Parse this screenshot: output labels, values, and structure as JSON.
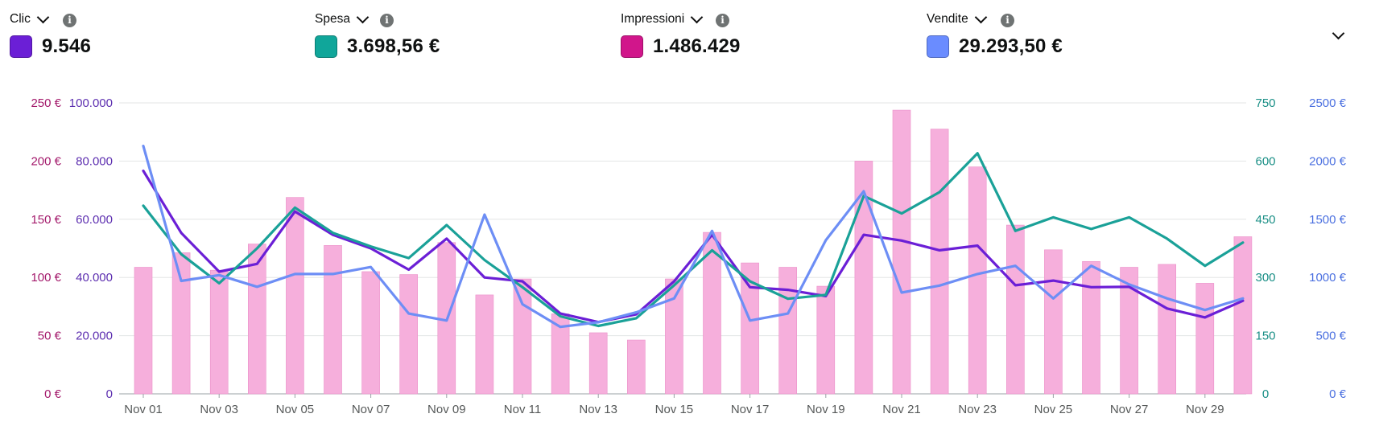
{
  "metrics": [
    {
      "title": "Clic",
      "value": "9.546",
      "color": "#6b1fd6"
    },
    {
      "title": "Spesa",
      "value": "3.698,56 €",
      "color": "#10a69a"
    },
    {
      "title": "Impressioni",
      "value": "1.486.429",
      "color": "#d1168b"
    },
    {
      "title": "Vendite",
      "value": "29.293,50 €",
      "color": "#6a8cff"
    }
  ],
  "icons": {
    "info": "info-icon",
    "chevron": "chevron-down-icon"
  },
  "chart_data": {
    "type": "bar",
    "grid": true,
    "legend": "none",
    "categories": [
      "Nov 01",
      "Nov 02",
      "Nov 03",
      "Nov 04",
      "Nov 05",
      "Nov 06",
      "Nov 07",
      "Nov 08",
      "Nov 09",
      "Nov 10",
      "Nov 11",
      "Nov 12",
      "Nov 13",
      "Nov 14",
      "Nov 15",
      "Nov 16",
      "Nov 17",
      "Nov 18",
      "Nov 19",
      "Nov 20",
      "Nov 21",
      "Nov 22",
      "Nov 23",
      "Nov 24",
      "Nov 25",
      "Nov 26",
      "Nov 27",
      "Nov 28",
      "Nov 29",
      "Nov 30"
    ],
    "x_tick_labels": [
      "Nov 01",
      "Nov 03",
      "Nov 05",
      "Nov 07",
      "Nov 09",
      "Nov 11",
      "Nov 13",
      "Nov 15",
      "Nov 17",
      "Nov 19",
      "Nov 21",
      "Nov 23",
      "Nov 25",
      "Nov 27",
      "Nov 29"
    ],
    "axes": {
      "left_outer": {
        "color": "#a3196b",
        "ylim": [
          0,
          250
        ],
        "ticks": [
          "0 €",
          "50 €",
          "100 €",
          "150 €",
          "200 €",
          "250 €"
        ]
      },
      "left_inner": {
        "color": "#5d2fb0",
        "ylim": [
          0,
          100000
        ],
        "ticks": [
          "0",
          "20.000",
          "40.000",
          "60.000",
          "80.000",
          "100.000"
        ]
      },
      "right_inner": {
        "color": "#1a8f86",
        "ylim": [
          0,
          750
        ],
        "ticks": [
          "0",
          "150",
          "300",
          "450",
          "600",
          "750"
        ]
      },
      "right_outer": {
        "color": "#4a6fe0",
        "ylim": [
          0,
          2500
        ],
        "ticks": [
          "0 €",
          "500 €",
          "1000 €",
          "1500 €",
          "2000 €",
          "2500 €"
        ]
      }
    },
    "series": [
      {
        "metric": "Impressioni",
        "type": "bar",
        "axis": "left_inner",
        "color": "#f6afdc",
        "values": [
          43500,
          48500,
          42500,
          51500,
          67500,
          51000,
          42000,
          41000,
          52000,
          34000,
          39500,
          27500,
          21000,
          18500,
          39500,
          55500,
          45000,
          43500,
          37000,
          80000,
          97500,
          91000,
          78000,
          58000,
          49500,
          45500,
          43500,
          44500,
          38000,
          54000
        ]
      },
      {
        "metric": "Clic",
        "type": "line",
        "axis": "right_inner",
        "color": "#6b1fd6",
        "values": [
          575,
          415,
          315,
          335,
          470,
          410,
          375,
          320,
          400,
          300,
          290,
          207,
          185,
          205,
          290,
          410,
          275,
          268,
          252,
          410,
          395,
          370,
          382,
          280,
          292,
          275,
          276,
          220,
          197,
          240
        ]
      },
      {
        "metric": "Spesa",
        "type": "line",
        "axis": "right_inner",
        "color": "#1aa198",
        "values": [
          485,
          360,
          285,
          375,
          480,
          415,
          380,
          350,
          435,
          345,
          275,
          200,
          175,
          195,
          280,
          370,
          290,
          245,
          255,
          510,
          465,
          520,
          620,
          420,
          455,
          425,
          455,
          400,
          330,
          390
        ]
      },
      {
        "metric": "Vendite",
        "type": "line",
        "axis": "right_outer",
        "color": "#6d8ef5",
        "values": [
          2130,
          970,
          1020,
          920,
          1030,
          1030,
          1090,
          690,
          630,
          1540,
          770,
          575,
          615,
          700,
          820,
          1400,
          630,
          690,
          1320,
          1740,
          870,
          930,
          1030,
          1100,
          820,
          1100,
          940,
          820,
          720,
          820
        ]
      }
    ]
  }
}
